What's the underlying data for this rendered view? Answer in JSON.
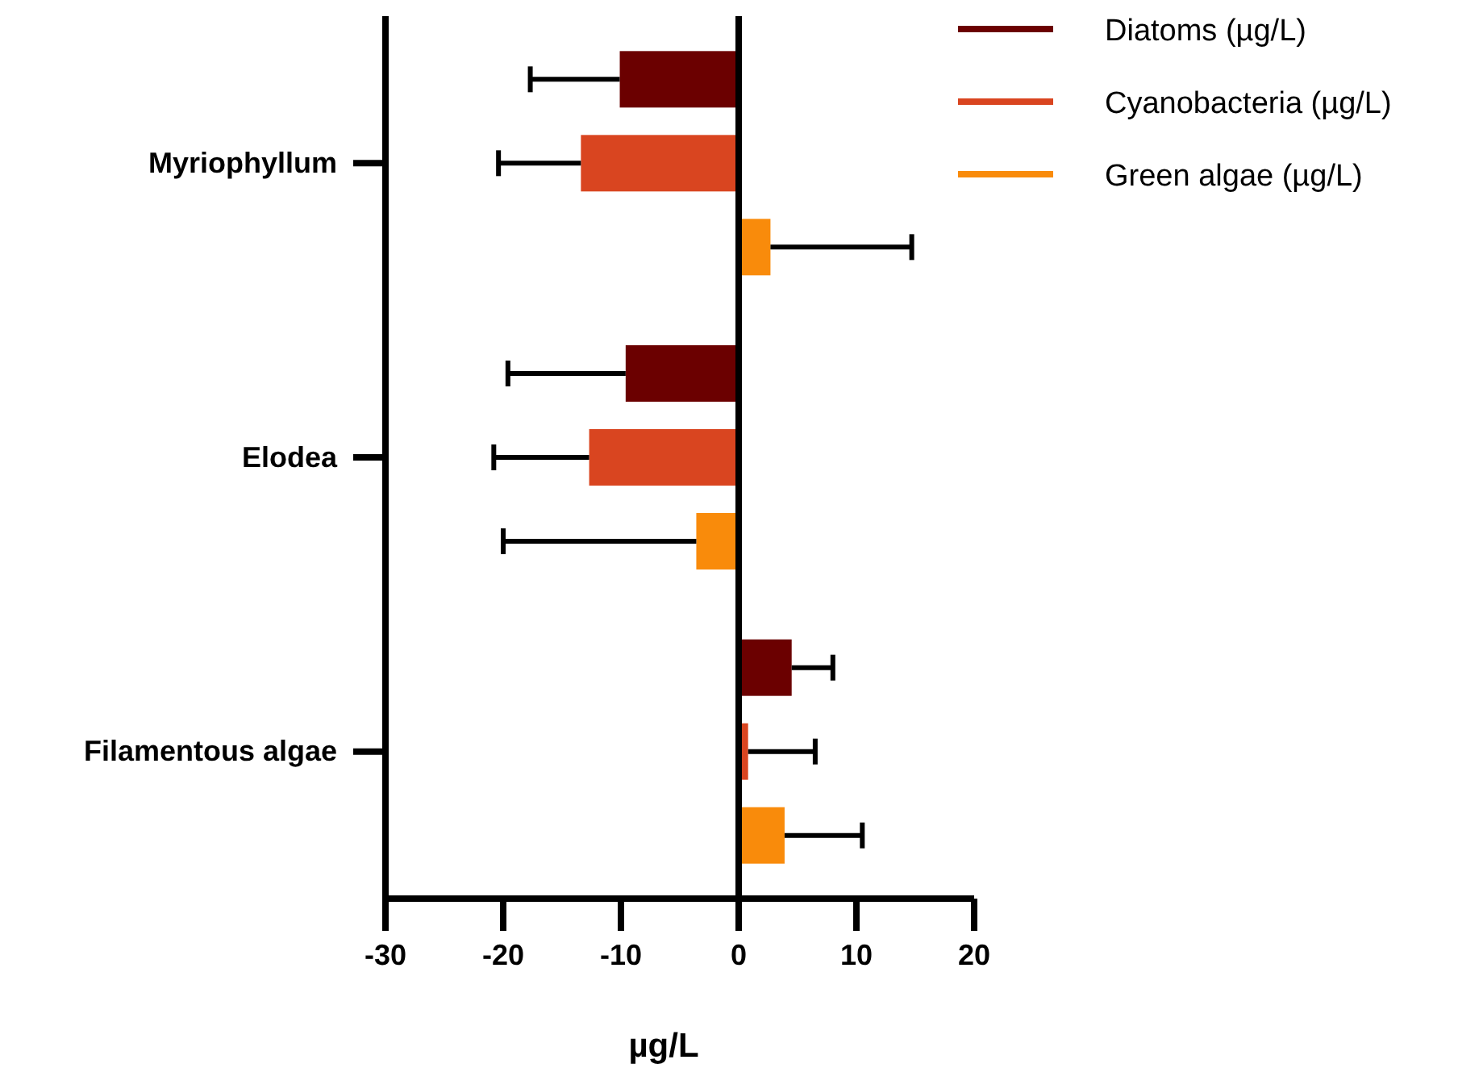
{
  "chart_data": {
    "type": "bar",
    "orientation": "horizontal",
    "xlabel": "µg/L",
    "categories": [
      "Myriophyllum",
      "Elodea",
      "Filamentous algae"
    ],
    "series": [
      {
        "name": "Diatoms (µg/L)",
        "color": "#6b0000",
        "values": [
          -10.1,
          -9.6,
          4.5
        ],
        "errors": [
          [
            -17.7,
            -10.1
          ],
          [
            -19.6,
            -9.6
          ],
          [
            4.5,
            8.0
          ]
        ]
      },
      {
        "name": "Cyanobacteria (µg/L)",
        "color": "#d94520",
        "values": [
          -13.4,
          -12.7,
          0.8
        ],
        "errors": [
          [
            -20.4,
            -13.4
          ],
          [
            -20.8,
            -12.7
          ],
          [
            0.8,
            6.5
          ]
        ]
      },
      {
        "name": "Green algae (µg/L)",
        "color": "#f98b0b",
        "values": [
          2.7,
          -3.6,
          3.9
        ],
        "errors": [
          [
            2.7,
            14.7
          ],
          [
            -20.0,
            -3.6
          ],
          [
            3.9,
            10.5
          ]
        ]
      }
    ],
    "xlim": [
      -30,
      20
    ],
    "xticks": [
      -30,
      -20,
      -10,
      0,
      10,
      20
    ],
    "ref_lines": [
      {
        "axis": "x",
        "value": 0,
        "color": "#000000"
      }
    ],
    "legend": "top right"
  }
}
